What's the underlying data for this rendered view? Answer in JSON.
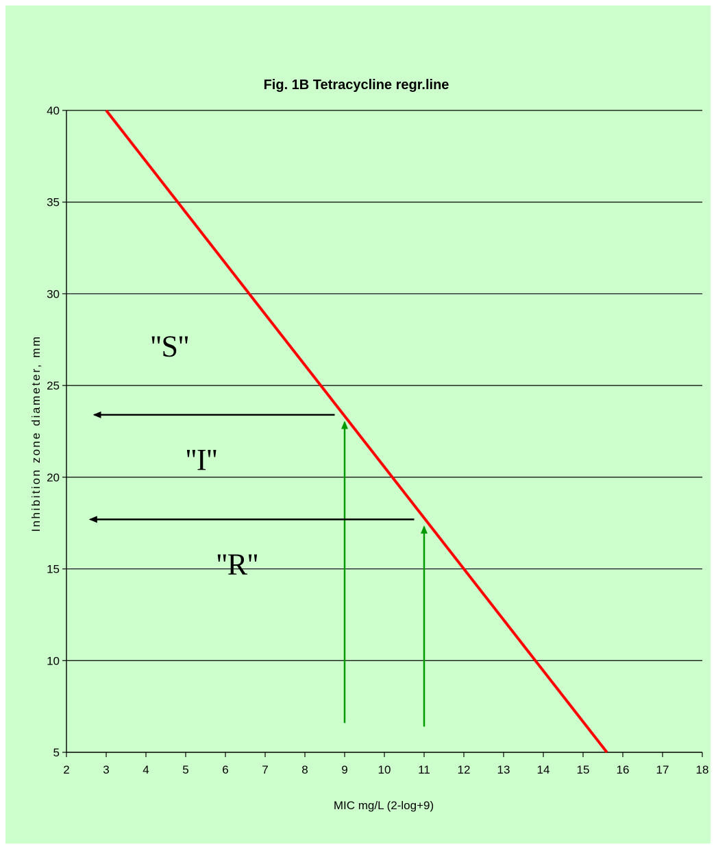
{
  "chart_data": {
    "type": "line",
    "title": "Fig. 1B  Tetracycline regr.line",
    "xlabel": "MIC mg/L (2-log+9)",
    "ylabel": "Inhibition zone diameter, mm",
    "xlim": [
      2,
      18
    ],
    "ylim": [
      5,
      40
    ],
    "x_ticks": [
      "2",
      "3",
      "4",
      "5",
      "6",
      "7",
      "8",
      "9",
      "10",
      "11",
      "12",
      "13",
      "14",
      "15",
      "16",
      "17",
      "18"
    ],
    "y_ticks": [
      "5",
      "10",
      "15",
      "20",
      "25",
      "30",
      "35",
      "40"
    ],
    "grid": true,
    "background_color": "#ccffcc",
    "line_color": "#ff0000",
    "series": [
      {
        "x": [
          3.0,
          15.6
        ],
        "y": [
          40,
          5
        ]
      }
    ],
    "breakpoint_arrows": [
      {
        "x": 9,
        "y_from": 6.6,
        "y_to": 23.0,
        "color": "#009900"
      },
      {
        "x": 11,
        "y_from": 6.4,
        "y_to": 17.3,
        "color": "#009900"
      }
    ],
    "horizontal_arrows": [
      {
        "y": 23.4,
        "x_from": 8.75,
        "x_to": 2.7,
        "color": "#000000"
      },
      {
        "y": 17.7,
        "x_from": 10.75,
        "x_to": 2.6,
        "color": "#000000"
      }
    ],
    "region_labels": [
      {
        "text": "''S''",
        "x": 4.6,
        "y": 26.6
      },
      {
        "text": "''I''",
        "x": 5.4,
        "y": 20.4
      },
      {
        "text": "''R''",
        "x": 6.3,
        "y": 14.7
      }
    ]
  }
}
